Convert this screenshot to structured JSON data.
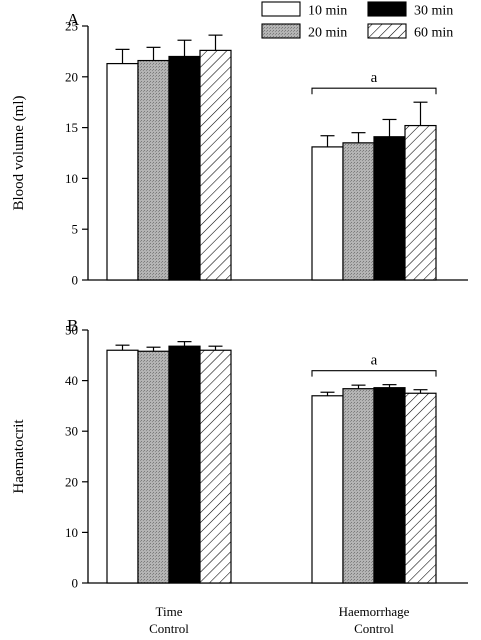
{
  "legend": {
    "entries": [
      "10 min",
      "20 min",
      "30 min",
      "60 min"
    ]
  },
  "x_categories": [
    "Time Control",
    "Haemorrhage Control"
  ],
  "x_category_lines": [
    [
      "Time",
      "Control"
    ],
    [
      "Haemorrhage",
      "Control"
    ]
  ],
  "colors": {
    "10 min": "#ffffff",
    "20 min": "#a9a9a9",
    "30 min": "#000000",
    "60 min": "hatched"
  },
  "chart_data": [
    {
      "type": "bar",
      "panel": "A",
      "ylabel": "Blood volume (ml)",
      "ylim": [
        0,
        25
      ],
      "yticks": [
        0,
        5,
        10,
        15,
        20,
        25
      ],
      "categories": [
        "Time Control",
        "Haemorrhage Control"
      ],
      "series": [
        {
          "name": "10 min",
          "values": [
            21.3,
            13.1
          ],
          "errors": [
            1.4,
            1.1
          ]
        },
        {
          "name": "20 min",
          "values": [
            21.6,
            13.5
          ],
          "errors": [
            1.3,
            1.0
          ]
        },
        {
          "name": "30 min",
          "values": [
            22.0,
            14.1
          ],
          "errors": [
            1.6,
            1.7
          ]
        },
        {
          "name": "60 min",
          "values": [
            22.6,
            15.2
          ],
          "errors": [
            1.5,
            2.3
          ]
        }
      ],
      "annotations": [
        {
          "text": "a",
          "category": "Haemorrhage Control"
        }
      ]
    },
    {
      "type": "bar",
      "panel": "B",
      "ylabel": "Haematocrit",
      "ylim": [
        0,
        50
      ],
      "yticks": [
        0,
        10,
        20,
        30,
        40,
        50
      ],
      "categories": [
        "Time Control",
        "Haemorrhage Control"
      ],
      "series": [
        {
          "name": "10 min",
          "values": [
            46.0,
            37.0
          ],
          "errors": [
            1.0,
            0.7
          ]
        },
        {
          "name": "20 min",
          "values": [
            45.8,
            38.4
          ],
          "errors": [
            0.8,
            0.7
          ]
        },
        {
          "name": "30 min",
          "values": [
            46.8,
            38.6
          ],
          "errors": [
            0.9,
            0.6
          ]
        },
        {
          "name": "60 min",
          "values": [
            46.0,
            37.5
          ],
          "errors": [
            0.8,
            0.7
          ]
        }
      ],
      "annotations": [
        {
          "text": "a",
          "category": "Haemorrhage Control"
        }
      ]
    }
  ]
}
